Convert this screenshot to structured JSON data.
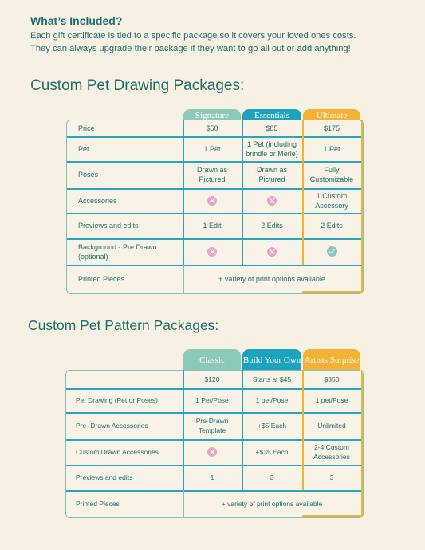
{
  "intro": {
    "heading": "What’s Included?",
    "line1": "Each gift certificate is tied to a specific package so it covers your loved ones costs.",
    "line2": "They can always upgrade their package if they want to go all out or add anything!"
  },
  "drawing": {
    "title": "Custom Pet Drawing Packages:",
    "columns": [
      "Signature",
      "Essentials",
      "Ultimate"
    ],
    "rows": [
      {
        "label": "Price",
        "cells": [
          "$50",
          "$85",
          "$175"
        ]
      },
      {
        "label": "Pet",
        "cells": [
          "1 Pet",
          "1 Pet (including brindle or Merle)",
          "1 Pet"
        ]
      },
      {
        "label": "Poses",
        "cells": [
          "Drawn as Pictured",
          "Drawn as Pictured",
          "Fully Customizable"
        ]
      },
      {
        "label": "Accessories",
        "cells": [
          "x-icon",
          "x-icon",
          "1 Custom Accessory"
        ]
      },
      {
        "label": "Previews and edits",
        "cells": [
          "1 Edit",
          "2 Edits",
          "2 Edits"
        ]
      },
      {
        "label": "Background - Pre Drawn (optional)",
        "cells": [
          "x-icon",
          "x-icon",
          "check-icon"
        ]
      }
    ],
    "printed_label": "Printed Pieces",
    "printed_text": "+ variety of print options available"
  },
  "pattern": {
    "title": "Custom Pet Pattern Packages:",
    "columns": [
      "Classic",
      "Build Your Own",
      "Artists Surprise"
    ],
    "rows": [
      {
        "label": "",
        "cells": [
          "$120",
          "Starts at $45",
          "$350"
        ]
      },
      {
        "label": "Pet Drawing (Pet or Poses)",
        "cells": [
          "1 Pet/Pose",
          "1 pet/Pose",
          "1 pet/Pose"
        ]
      },
      {
        "label": "Pre- Drawn Accessories",
        "cells": [
          "Pre-Drawn Template",
          "+$5 Each",
          "Unlimited"
        ]
      },
      {
        "label": "Custom Drawn Accessories",
        "cells": [
          "x-icon",
          "+$35 Each",
          "2-4 Custom Accessories"
        ]
      },
      {
        "label": "Previews and edits",
        "cells": [
          "1",
          "3",
          "3"
        ]
      }
    ],
    "printed_label": "Printed Pieces",
    "printed_text": "+ variety of print options available"
  },
  "colors": {
    "col1": "#8cc9b9",
    "col2": "#1da3bd",
    "col3": "#f2b233",
    "text": "#1f6f6c",
    "line": "#2aa5c0",
    "cross": "#e9a3c3",
    "check": "#8cc6c0"
  }
}
